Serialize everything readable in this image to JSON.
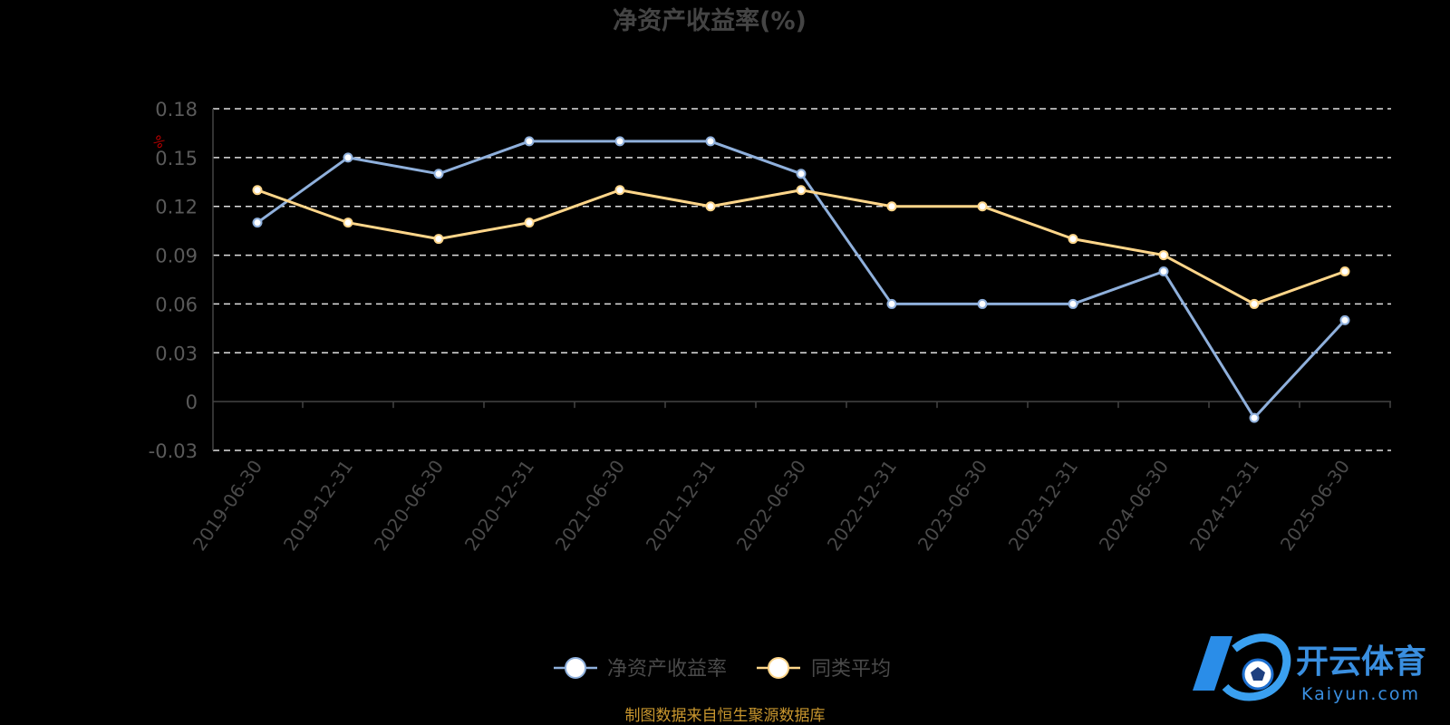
{
  "chart_data": {
    "type": "line",
    "title": "净资产收益率(%)",
    "y_unit": "%",
    "categories": [
      "2019-06-30",
      "2019-12-31",
      "2020-06-30",
      "2020-12-31",
      "2021-06-30",
      "2021-12-31",
      "2022-06-30",
      "2022-12-31",
      "2023-06-30",
      "2023-12-31",
      "2024-06-30",
      "2024-12-31",
      "2025-06-30"
    ],
    "series": [
      {
        "name": "净资产收益率",
        "color": "#8fb0dc",
        "values": [
          0.11,
          0.15,
          0.14,
          0.16,
          0.16,
          0.16,
          0.14,
          0.06,
          0.06,
          0.06,
          0.08,
          -0.01,
          0.05
        ]
      },
      {
        "name": "同类平均",
        "color": "#ffd68a",
        "values": [
          0.13,
          0.11,
          0.1,
          0.11,
          0.13,
          0.12,
          0.13,
          0.12,
          0.12,
          0.1,
          0.09,
          0.06,
          0.08
        ]
      }
    ],
    "ylim": [
      -0.03,
      0.18
    ],
    "yticks": [
      "0.18",
      "0.15",
      "0.12",
      "0.09",
      "0.06",
      "0.03",
      "0",
      "-0.03"
    ],
    "ytick_values": [
      0.18,
      0.15,
      0.12,
      0.09,
      0.06,
      0.03,
      0,
      -0.03
    ],
    "grid": true,
    "legend_position": "bottom-center",
    "source": "制图数据来自恒生聚源数据库"
  },
  "watermark": {
    "cn": "开云体育",
    "en": "Kaiyun.com"
  }
}
